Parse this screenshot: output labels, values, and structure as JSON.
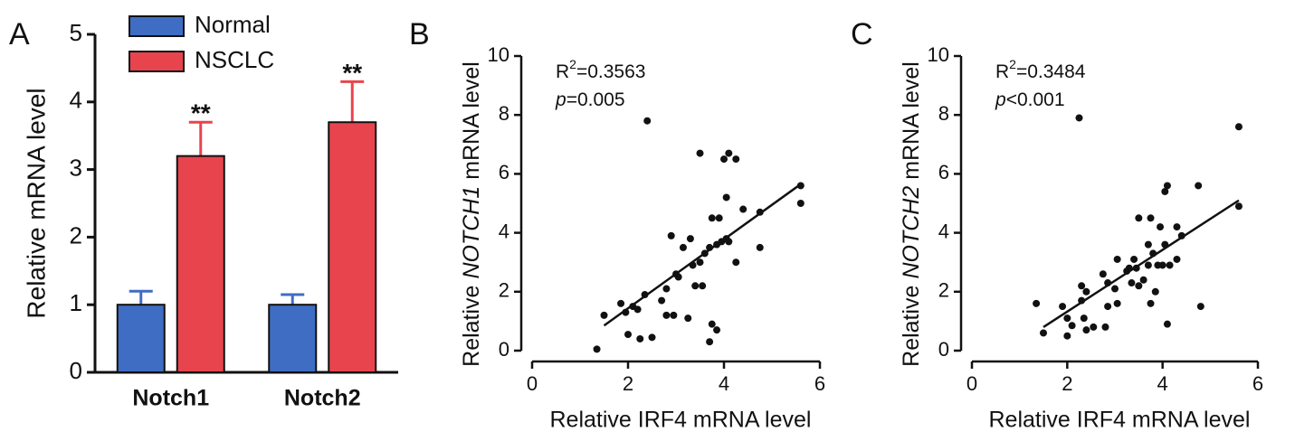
{
  "chart_data": [
    {
      "type": "bar",
      "panel_label": "A",
      "ylabel": "Relative mRNA level",
      "categories": [
        "Notch1",
        "Notch2"
      ],
      "series": [
        {
          "name": "Normal",
          "color": "#3f6dc3",
          "values": [
            1.0,
            1.0
          ],
          "errors": [
            0.2,
            0.15
          ]
        },
        {
          "name": "NSCLC",
          "color": "#e8444e",
          "values": [
            3.2,
            3.7
          ],
          "errors": [
            0.5,
            0.6
          ],
          "significance": [
            "**",
            "**"
          ]
        }
      ],
      "ylim": [
        0,
        5
      ],
      "yticks": [
        0,
        1,
        2,
        3,
        4,
        5
      ]
    },
    {
      "type": "scatter",
      "panel_label": "B",
      "xlabel": "Relative IRF4 mRNA level",
      "ylabel_parts": [
        "Relative",
        "NOTCH1",
        "mRNA level"
      ],
      "stats": {
        "r_label": "R",
        "r_sup": "2",
        "r_value": "=0.3563",
        "p_label": "p",
        "p_value": "=0.005"
      },
      "color": "#111111",
      "x": [
        1.35,
        1.5,
        1.85,
        1.95,
        2.0,
        2.1,
        2.2,
        2.25,
        2.35,
        2.4,
        2.5,
        2.7,
        2.8,
        2.8,
        2.9,
        2.95,
        3.0,
        3.05,
        3.15,
        3.25,
        3.3,
        3.35,
        3.4,
        3.5,
        3.5,
        3.55,
        3.6,
        3.7,
        3.7,
        3.75,
        3.75,
        3.85,
        3.85,
        3.9,
        3.95,
        4.0,
        4.05,
        4.05,
        4.1,
        4.1,
        4.25,
        4.25,
        4.4,
        4.75,
        4.75,
        5.6,
        5.6
      ],
      "values": [
        0.05,
        1.2,
        1.6,
        1.3,
        0.55,
        1.5,
        1.4,
        0.4,
        1.9,
        7.8,
        0.45,
        1.7,
        2.1,
        1.2,
        3.9,
        1.2,
        2.6,
        2.5,
        3.5,
        1.1,
        3.8,
        2.9,
        2.2,
        3.0,
        6.7,
        2.2,
        3.3,
        0.3,
        3.5,
        0.9,
        4.5,
        0.7,
        3.6,
        4.5,
        3.7,
        6.5,
        3.8,
        5.2,
        6.7,
        3.7,
        3.0,
        6.5,
        4.8,
        3.5,
        4.7,
        5.0,
        5.6
      ],
      "fit_line": {
        "x": [
          1.5,
          5.6
        ],
        "y": [
          0.85,
          5.65
        ]
      },
      "xlim": [
        0,
        6
      ],
      "xticks": [
        0,
        2,
        4,
        6
      ],
      "ylim": [
        0,
        10
      ],
      "yticks": [
        0,
        2,
        4,
        6,
        8,
        10
      ]
    },
    {
      "type": "scatter",
      "panel_label": "C",
      "xlabel": "Relative IRF4 mRNA level",
      "ylabel_parts": [
        "Relative",
        "NOTCH2",
        "mRNA level"
      ],
      "stats": {
        "r_label": "R",
        "r_sup": "2",
        "r_value": "=0.3484",
        "p_label": "p",
        "p_value": "<0.001"
      },
      "color": "#111111",
      "x": [
        1.35,
        1.5,
        1.9,
        2.0,
        2.0,
        2.1,
        2.25,
        2.3,
        2.3,
        2.35,
        2.4,
        2.4,
        2.55,
        2.75,
        2.8,
        2.85,
        2.85,
        3.0,
        3.05,
        3.05,
        3.25,
        3.3,
        3.35,
        3.4,
        3.45,
        3.5,
        3.5,
        3.6,
        3.7,
        3.7,
        3.75,
        3.75,
        3.8,
        3.85,
        3.9,
        3.95,
        4.0,
        4.05,
        4.05,
        4.1,
        4.1,
        4.15,
        4.3,
        4.3,
        4.4,
        4.75,
        4.8,
        5.6,
        5.6
      ],
      "values": [
        1.6,
        0.6,
        1.5,
        1.1,
        0.5,
        0.85,
        7.9,
        2.2,
        1.7,
        1.1,
        2.0,
        0.7,
        0.8,
        2.6,
        0.8,
        1.5,
        2.3,
        2.1,
        1.6,
        3.1,
        2.7,
        2.8,
        2.3,
        3.1,
        2.8,
        4.5,
        2.2,
        2.4,
        3.6,
        2.9,
        4.5,
        1.6,
        3.3,
        2.0,
        2.9,
        4.2,
        2.9,
        5.4,
        3.6,
        5.6,
        0.9,
        2.9,
        3.1,
        4.2,
        3.9,
        5.6,
        1.5,
        4.9,
        7.6
      ],
      "fit_line": {
        "x": [
          1.5,
          5.6
        ],
        "y": [
          0.8,
          5.1
        ]
      },
      "xlim": [
        0,
        6
      ],
      "xticks": [
        0,
        2,
        4,
        6
      ],
      "ylim": [
        0,
        10
      ],
      "yticks": [
        0,
        2,
        4,
        6,
        8,
        10
      ]
    }
  ]
}
